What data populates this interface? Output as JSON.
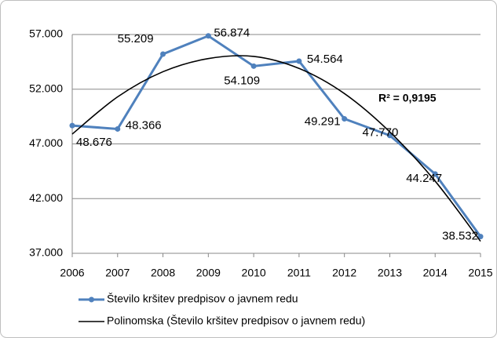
{
  "chart_data": {
    "type": "line",
    "categories": [
      "2006",
      "2007",
      "2008",
      "2009",
      "2010",
      "2011",
      "2012",
      "2013",
      "2014",
      "2015"
    ],
    "series": [
      {
        "name": "Število kršitev predpisov o javnem redu",
        "color": "#4f81bd",
        "markers": true,
        "values": [
          48676,
          48366,
          55209,
          56874,
          54109,
          54564,
          49291,
          47770,
          44247,
          38532
        ],
        "value_labels": [
          "48.676",
          "48.366",
          "55.209",
          "56.874",
          "54.109",
          "54.564",
          "49.291",
          "47.770",
          "44.247",
          "38.532"
        ]
      },
      {
        "name": "Polinomska (Število kršitev predpisov o javnem redu)",
        "color": "#000000",
        "markers": false,
        "smooth": true,
        "values": [
          47900,
          51300,
          53600,
          54800,
          55000,
          53900,
          51600,
          48100,
          43600,
          38100
        ]
      }
    ],
    "annotations": [
      "R² = 0,9195"
    ],
    "ylim": [
      37000,
      57000
    ],
    "yticks": [
      {
        "value": 37000,
        "label": "37.000"
      },
      {
        "value": 42000,
        "label": "42.000"
      },
      {
        "value": 47000,
        "label": "47.000"
      },
      {
        "value": 52000,
        "label": "52.000"
      },
      {
        "value": 57000,
        "label": "57.000"
      }
    ],
    "grid": true,
    "legend": "bottom"
  }
}
